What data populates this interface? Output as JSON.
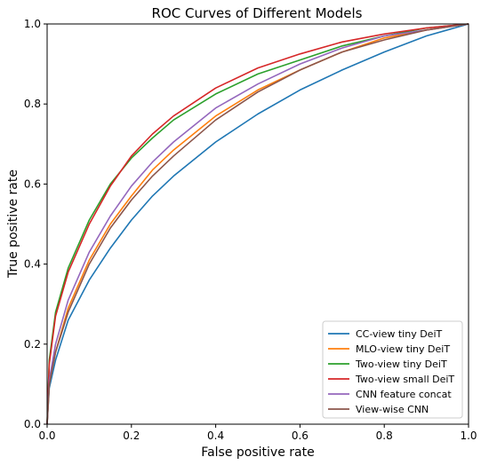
{
  "chart_data": {
    "type": "line",
    "title": "ROC Curves of Different Models",
    "xlabel": "False positive rate",
    "ylabel": "True positive rate",
    "xlim": [
      0.0,
      1.0
    ],
    "ylim": [
      0.0,
      1.0
    ],
    "xticks": [
      "0.0",
      "0.2",
      "0.4",
      "0.6",
      "0.8",
      "1.0"
    ],
    "yticks": [
      "0.0",
      "0.2",
      "0.4",
      "0.6",
      "0.8",
      "1.0"
    ],
    "grid": false,
    "legend_position": "lower-right",
    "series": [
      {
        "name": "CC-view tiny DeiT",
        "color": "#1f77b4",
        "x": [
          0,
          0.005,
          0.02,
          0.05,
          0.1,
          0.15,
          0.2,
          0.25,
          0.3,
          0.4,
          0.5,
          0.6,
          0.7,
          0.8,
          0.9,
          1.0
        ],
        "y": [
          0,
          0.09,
          0.16,
          0.26,
          0.36,
          0.44,
          0.51,
          0.57,
          0.62,
          0.705,
          0.775,
          0.835,
          0.885,
          0.93,
          0.97,
          1.0
        ]
      },
      {
        "name": "MLO-view tiny DeiT",
        "color": "#ff7f0e",
        "x": [
          0,
          0.005,
          0.02,
          0.05,
          0.1,
          0.15,
          0.2,
          0.25,
          0.3,
          0.4,
          0.5,
          0.6,
          0.7,
          0.8,
          0.9,
          1.0
        ],
        "y": [
          0,
          0.1,
          0.18,
          0.29,
          0.41,
          0.5,
          0.57,
          0.635,
          0.685,
          0.77,
          0.835,
          0.885,
          0.93,
          0.965,
          0.985,
          1.0
        ]
      },
      {
        "name": "Two-view tiny DeiT",
        "color": "#2ca02c",
        "x": [
          0,
          0.005,
          0.02,
          0.05,
          0.1,
          0.15,
          0.2,
          0.25,
          0.3,
          0.4,
          0.5,
          0.6,
          0.7,
          0.8,
          0.9,
          1.0
        ],
        "y": [
          0,
          0.16,
          0.28,
          0.39,
          0.51,
          0.6,
          0.665,
          0.715,
          0.76,
          0.825,
          0.875,
          0.91,
          0.945,
          0.97,
          0.99,
          1.0
        ]
      },
      {
        "name": "Two-view small DeiT",
        "color": "#d62728",
        "x": [
          0,
          0.005,
          0.02,
          0.05,
          0.1,
          0.15,
          0.2,
          0.25,
          0.3,
          0.4,
          0.5,
          0.6,
          0.7,
          0.8,
          0.9,
          1.0
        ],
        "y": [
          0,
          0.15,
          0.27,
          0.38,
          0.5,
          0.595,
          0.67,
          0.725,
          0.77,
          0.84,
          0.89,
          0.925,
          0.955,
          0.975,
          0.99,
          1.0
        ]
      },
      {
        "name": "CNN feature concat",
        "color": "#9467bd",
        "x": [
          0,
          0.005,
          0.02,
          0.05,
          0.1,
          0.15,
          0.2,
          0.25,
          0.3,
          0.4,
          0.5,
          0.6,
          0.7,
          0.8,
          0.9,
          1.0
        ],
        "y": [
          0,
          0.11,
          0.2,
          0.31,
          0.43,
          0.52,
          0.595,
          0.655,
          0.705,
          0.79,
          0.85,
          0.9,
          0.94,
          0.97,
          0.985,
          1.0
        ]
      },
      {
        "name": "View-wise CNN",
        "color": "#8c564b",
        "x": [
          0,
          0.005,
          0.02,
          0.05,
          0.1,
          0.15,
          0.2,
          0.25,
          0.3,
          0.4,
          0.5,
          0.6,
          0.7,
          0.8,
          0.9,
          1.0
        ],
        "y": [
          0,
          0.1,
          0.18,
          0.28,
          0.4,
          0.49,
          0.56,
          0.62,
          0.67,
          0.76,
          0.83,
          0.885,
          0.93,
          0.96,
          0.985,
          1.0
        ]
      }
    ]
  }
}
